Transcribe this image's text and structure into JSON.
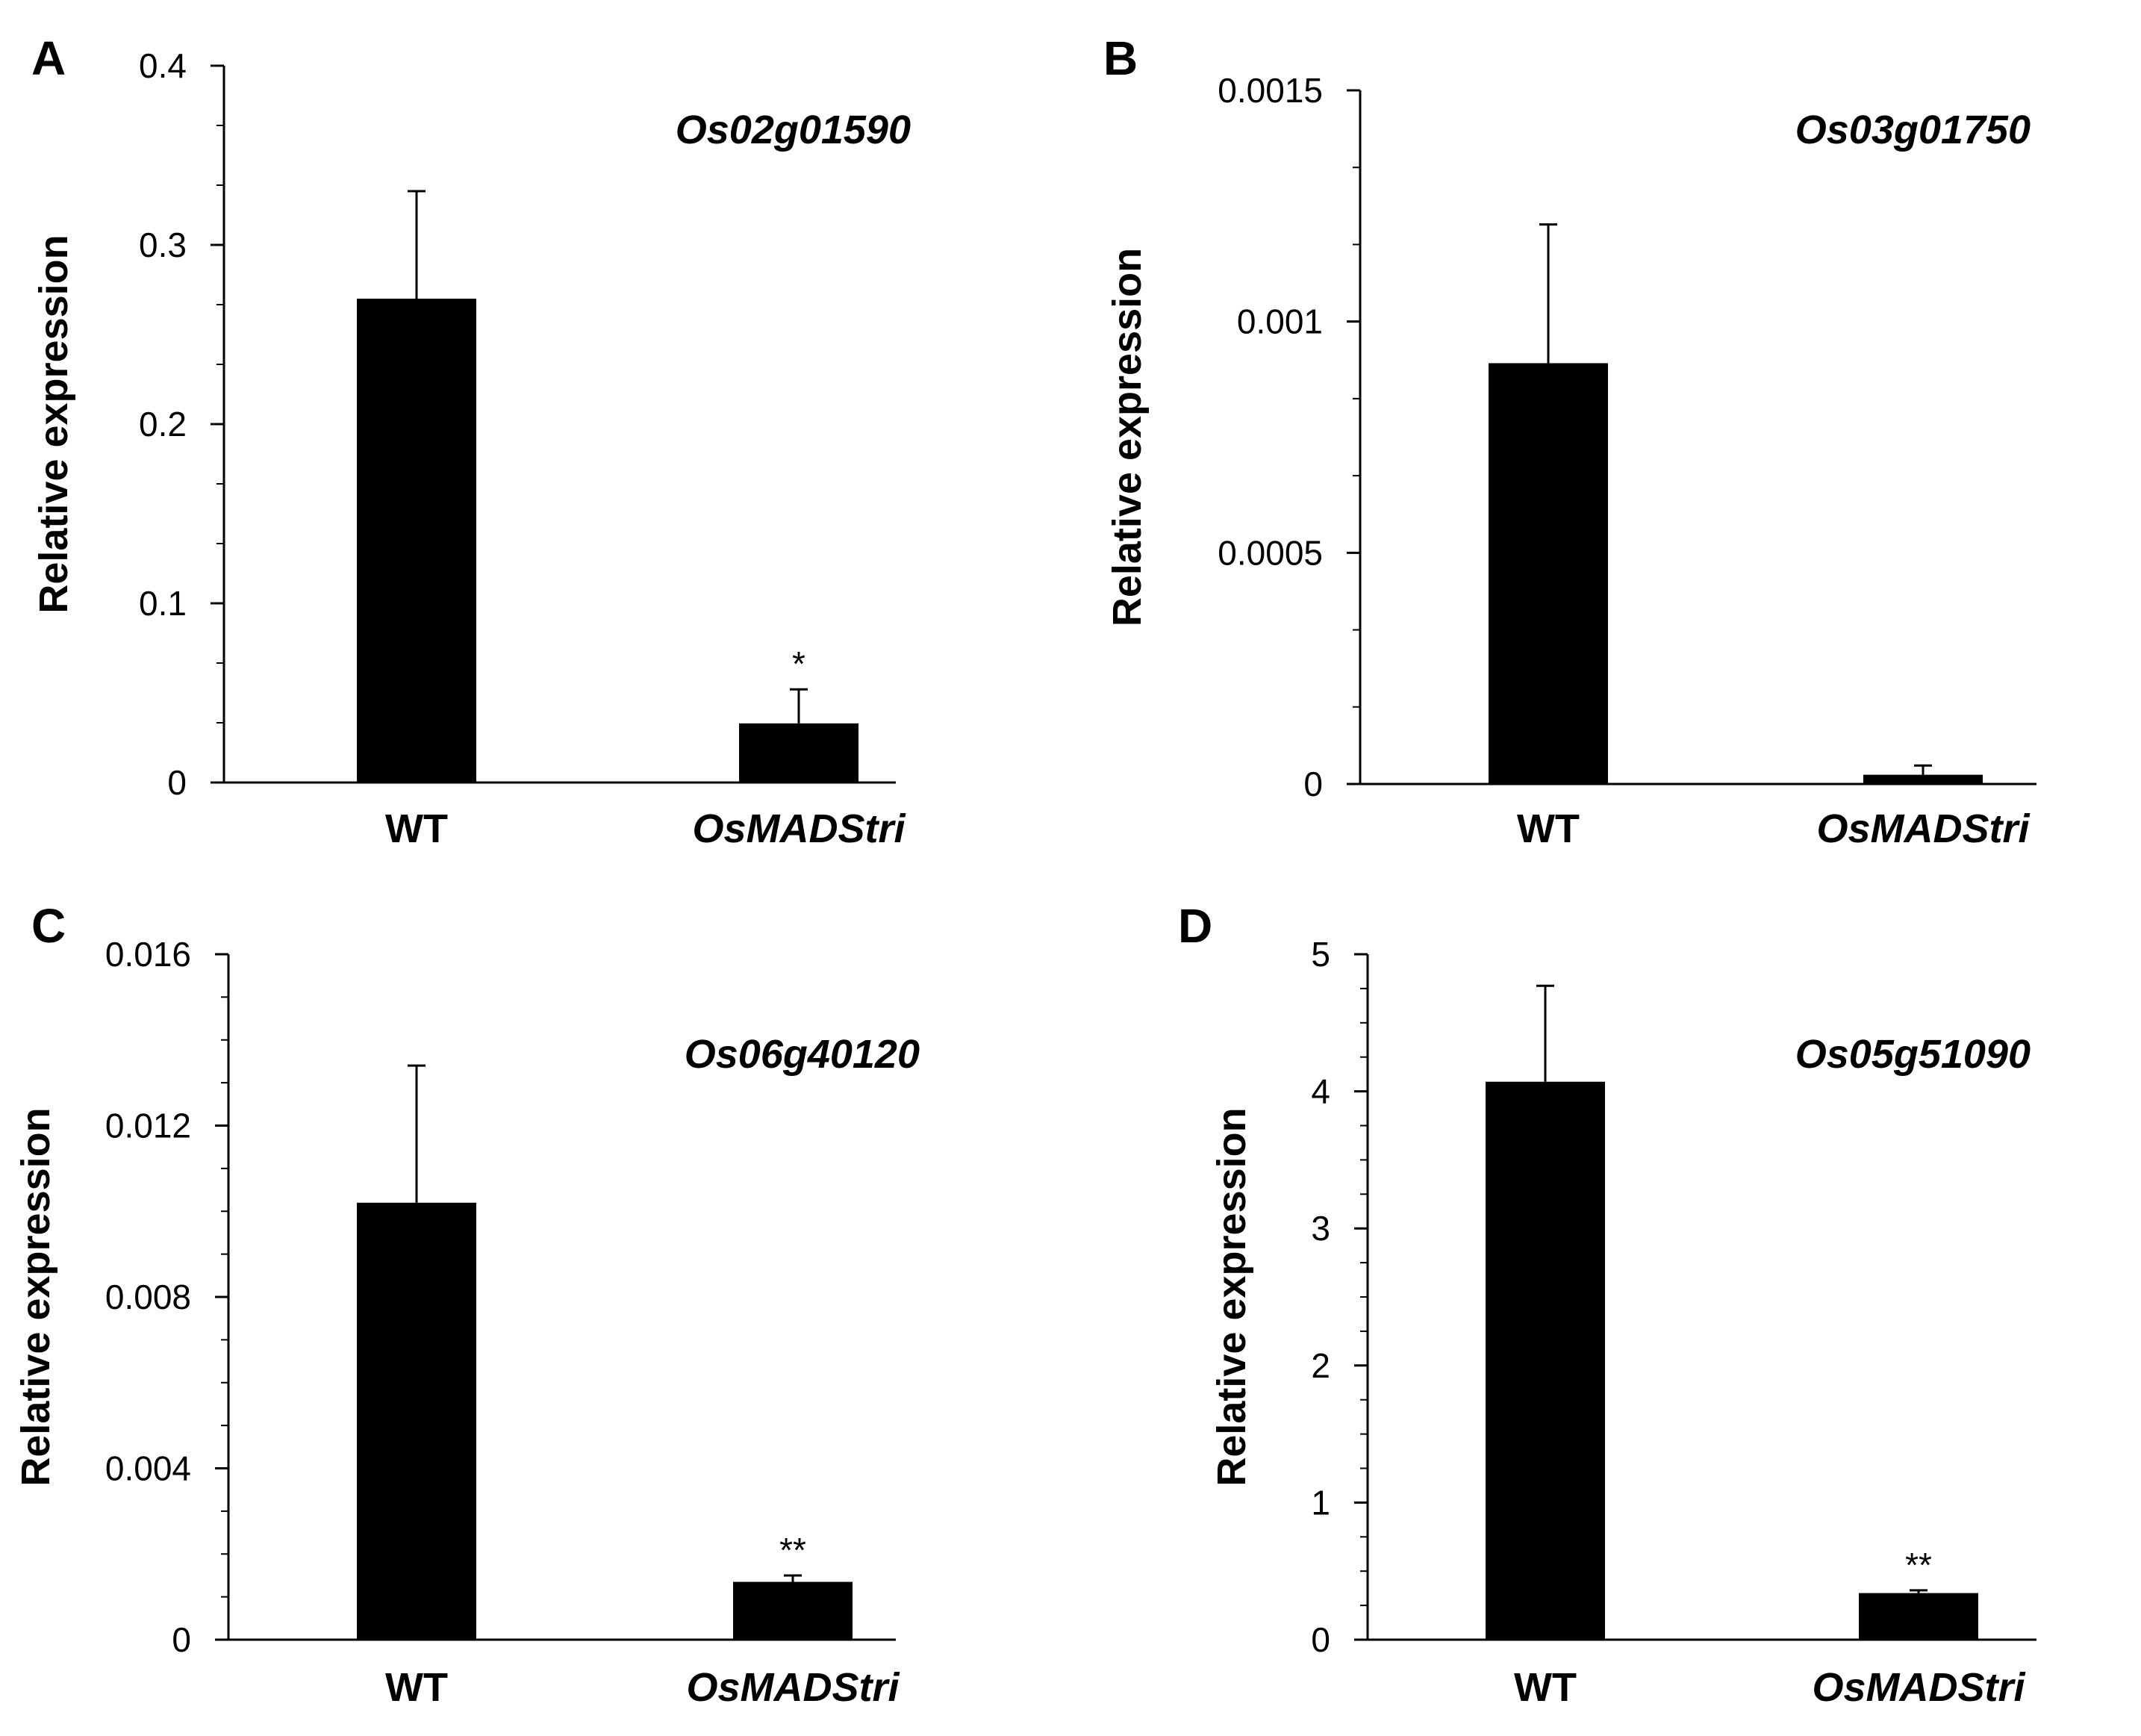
{
  "colors": {
    "bar": "#000000",
    "axis": "#000000",
    "background": "#ffffff"
  },
  "chart_data": [
    {
      "panel": "A",
      "type": "bar",
      "title": "Os02g01590",
      "ylabel": "Relative expression",
      "xlabel": "",
      "categories": [
        "WT",
        "OsMADStri"
      ],
      "category_italic": [
        false,
        true
      ],
      "values": [
        0.27,
        0.033
      ],
      "errors": [
        0.06,
        0.019
      ],
      "significance": [
        "",
        "*"
      ],
      "ylim": [
        0,
        0.4
      ],
      "major_ticks": [
        0,
        0.1,
        0.2,
        0.3,
        0.4
      ],
      "tick_labels": [
        "0",
        "0.1",
        "0.2",
        "0.3",
        "0.4"
      ],
      "minor_ticks": true,
      "grid": false
    },
    {
      "panel": "B",
      "type": "bar",
      "title": "Os03g01750",
      "ylabel": "Relative expression",
      "xlabel": "",
      "categories": [
        "WT",
        "OsMADStri"
      ],
      "category_italic": [
        false,
        true
      ],
      "values": [
        0.00091,
        2e-05
      ],
      "errors": [
        0.0003,
        2e-05
      ],
      "significance": [
        "",
        ""
      ],
      "ylim": [
        0,
        0.0015
      ],
      "major_ticks": [
        0,
        0.0005,
        0.001,
        0.0015
      ],
      "tick_labels": [
        "0",
        "0.0005",
        "0.001",
        "0.0015"
      ],
      "minor_ticks": true,
      "grid": false
    },
    {
      "panel": "C",
      "type": "bar",
      "title": "Os06g40120",
      "ylabel": "Relative expression",
      "xlabel": "",
      "categories": [
        "WT",
        "OsMADStri"
      ],
      "category_italic": [
        false,
        true
      ],
      "values": [
        0.0102,
        0.00135
      ],
      "errors": [
        0.0032,
        0.00015
      ],
      "significance": [
        "",
        "**"
      ],
      "ylim": [
        0,
        0.016
      ],
      "major_ticks": [
        0,
        0.004,
        0.008,
        0.012,
        0.016
      ],
      "tick_labels": [
        "0",
        "0.004",
        "0.008",
        "0.012",
        "0.016"
      ],
      "minor_ticks": true,
      "grid": false
    },
    {
      "panel": "D",
      "type": "bar",
      "title": "Os05g51090",
      "ylabel": "Relative expression",
      "xlabel": "",
      "categories": [
        "WT",
        "OsMADStri"
      ],
      "category_italic": [
        false,
        true
      ],
      "values": [
        4.07,
        0.34
      ],
      "errors": [
        0.7,
        0.02
      ],
      "significance": [
        "",
        "**"
      ],
      "ylim": [
        0,
        5
      ],
      "major_ticks": [
        0,
        1,
        2,
        3,
        4,
        5
      ],
      "tick_labels": [
        "0",
        "1",
        "2",
        "3",
        "4",
        "5"
      ],
      "minor_ticks": true,
      "grid": false
    }
  ]
}
